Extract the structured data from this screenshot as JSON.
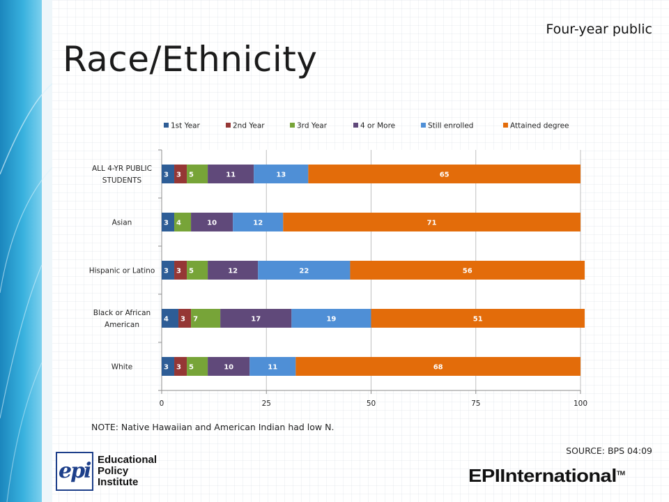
{
  "title": "Race/Ethnicity",
  "subtitle": "Four-year public",
  "note": "NOTE: Native Hawaiian and American Indian had low N.",
  "source": "SOURCE: BPS 04:09",
  "logo_left": {
    "mark": "epi",
    "lines": [
      "Educational",
      "Policy",
      "Institute"
    ]
  },
  "logo_right": {
    "text_a": "EPI",
    "text_b": "International",
    "tm": "TM"
  },
  "colors": {
    "brand_blue": "#1d3f8a",
    "band_teal": "#2aa3d2"
  },
  "chart_data": {
    "type": "bar",
    "orientation": "horizontal",
    "stacked": true,
    "categories": [
      "ALL 4-YR PUBLIC STUDENTS",
      "Asian",
      "Hispanic or Latino",
      "Black or African American",
      "White"
    ],
    "category_label_lines": [
      [
        "ALL 4-YR PUBLIC",
        "STUDENTS"
      ],
      [
        "Asian"
      ],
      [
        "Hispanic or Latino"
      ],
      [
        "Black or African",
        "American"
      ],
      [
        "White"
      ]
    ],
    "series": [
      {
        "name": "1st Year",
        "color": "#2e5d96",
        "values": [
          3,
          3,
          3,
          4,
          3
        ]
      },
      {
        "name": "2nd Year",
        "color": "#953735",
        "values": [
          3,
          0,
          3,
          3,
          3
        ]
      },
      {
        "name": "3rd Year",
        "color": "#77a438",
        "values": [
          5,
          4,
          5,
          7,
          5
        ]
      },
      {
        "name": "4 or More",
        "color": "#60497a",
        "values": [
          11,
          10,
          12,
          17,
          10
        ]
      },
      {
        "name": "Still enrolled",
        "color": "#4f8fd6",
        "values": [
          13,
          12,
          22,
          19,
          11
        ]
      },
      {
        "name": "Attained degree",
        "color": "#e36c0a",
        "values": [
          65,
          71,
          56,
          51,
          68
        ]
      }
    ],
    "xlim": [
      0,
      100
    ],
    "xticks": [
      0,
      25,
      50,
      75,
      100
    ],
    "legend_position": "top",
    "grid": true
  }
}
